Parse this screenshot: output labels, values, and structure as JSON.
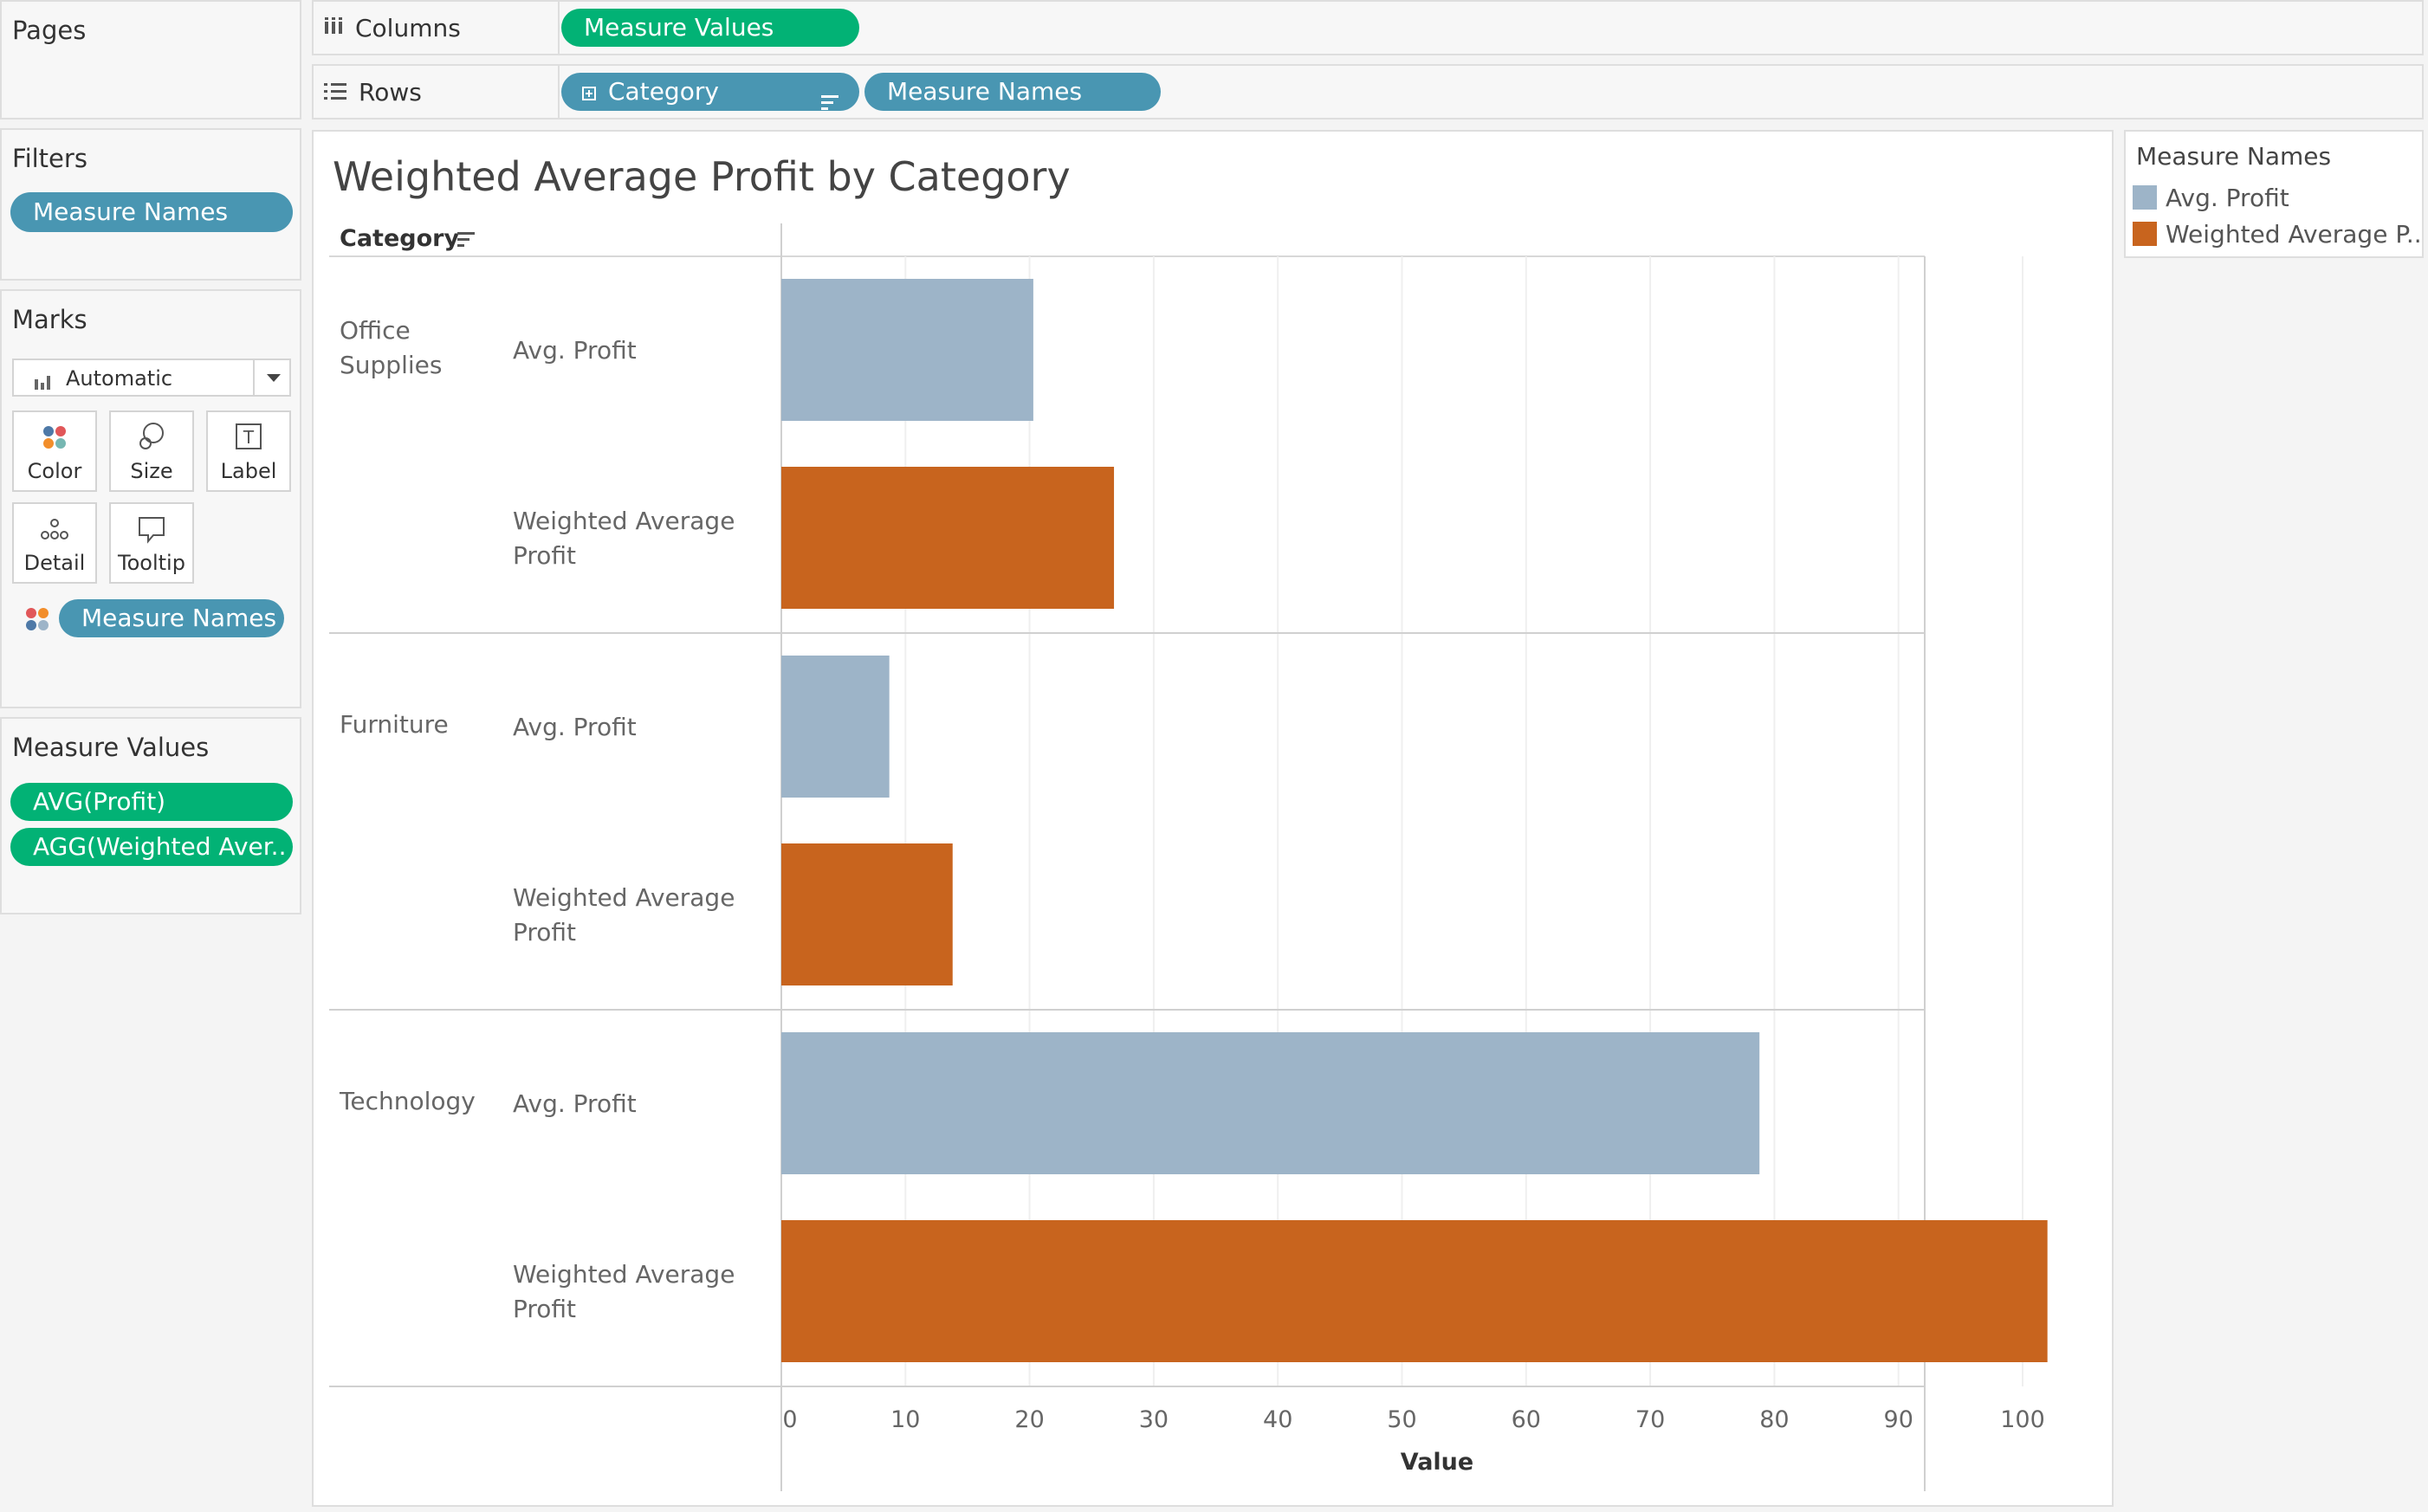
{
  "pages": {
    "title": "Pages"
  },
  "columns_shelf": {
    "label": "Columns",
    "pills": [
      "Measure Values"
    ]
  },
  "rows_shelf": {
    "label": "Rows",
    "pills": [
      "Category",
      "Measure Names"
    ]
  },
  "filters": {
    "title": "Filters",
    "pills": [
      "Measure Names"
    ]
  },
  "marks": {
    "title": "Marks",
    "mark_type": "Automatic",
    "buttons": [
      "Color",
      "Size",
      "Label",
      "Detail",
      "Tooltip"
    ],
    "color_pill": "Measure Names"
  },
  "measure_values": {
    "title": "Measure Values",
    "pills": [
      "AVG(Profit)",
      "AGG(Weighted Aver.."
    ]
  },
  "legend": {
    "title": "Measure Names",
    "items": [
      {
        "label": "Avg. Profit",
        "color": "#9db4c8"
      },
      {
        "label": "Weighted Average P..",
        "color": "#c8641e"
      }
    ]
  },
  "view": {
    "category_header": "Category"
  },
  "chart_data": {
    "type": "bar",
    "orientation": "horizontal",
    "title": "Weighted Average Profit by Category",
    "xlabel": "Value",
    "ylabel": "",
    "row_header": "Category",
    "categories": [
      [
        "Office",
        "Supplies"
      ],
      [
        "Furniture"
      ],
      [
        "Technology"
      ]
    ],
    "series": [
      {
        "name": "Avg. Profit",
        "row_label": [
          "Avg. Profit"
        ],
        "color": "#9db4c8",
        "values": [
          20.3,
          8.7,
          78.8
        ]
      },
      {
        "name": "Weighted Average Profit",
        "row_label": [
          "Weighted Average",
          "Profit"
        ],
        "color": "#c8641e",
        "values": [
          26.8,
          13.8,
          102.0
        ]
      }
    ],
    "xlim": [
      0,
      106
    ],
    "xticks": [
      0,
      10,
      20,
      30,
      40,
      50,
      60,
      70,
      80,
      90,
      100
    ],
    "grid": true,
    "legend_position": "right"
  }
}
